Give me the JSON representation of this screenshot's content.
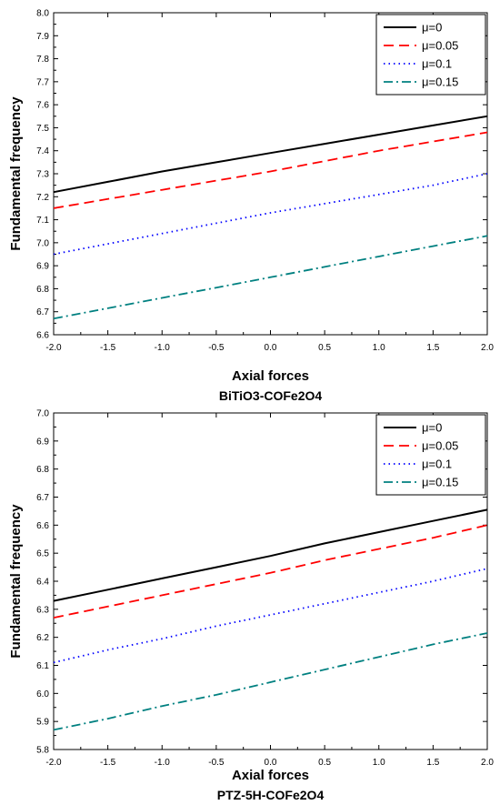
{
  "chart_data": [
    {
      "type": "line",
      "caption": "BiTiO3-COFe2O4",
      "xlabel": "Axial forces",
      "ylabel": "Fundamental frequency",
      "xlim": [
        -2.0,
        2.0
      ],
      "ylim": [
        6.6,
        8.0
      ],
      "x_ticks": [
        "-2.0",
        "-1.5",
        "-1.0",
        "-0.5",
        "0.0",
        "0.5",
        "1.0",
        "1.5",
        "2.0"
      ],
      "y_ticks": [
        "6.6",
        "6.7",
        "6.8",
        "6.9",
        "7.0",
        "7.1",
        "7.2",
        "7.3",
        "7.4",
        "7.5",
        "7.6",
        "7.7",
        "7.8",
        "7.9",
        "8.0"
      ],
      "legend_position": "top-right",
      "series": [
        {
          "name": "μ=0",
          "color": "#000000",
          "dash": "solid",
          "x": [
            -2.0,
            -1.5,
            -1.0,
            -0.5,
            0.0,
            0.5,
            1.0,
            1.5,
            2.0
          ],
          "y": [
            7.22,
            7.265,
            7.31,
            7.35,
            7.39,
            7.43,
            7.47,
            7.51,
            7.55
          ]
        },
        {
          "name": "μ=0.05",
          "color": "#ff0000",
          "dash": "dash",
          "x": [
            -2.0,
            -1.5,
            -1.0,
            -0.5,
            0.0,
            0.5,
            1.0,
            1.5,
            2.0
          ],
          "y": [
            7.15,
            7.19,
            7.23,
            7.27,
            7.31,
            7.355,
            7.4,
            7.44,
            7.48
          ]
        },
        {
          "name": "μ=0.1",
          "color": "#0000ff",
          "dash": "dot",
          "x": [
            -2.0,
            -1.5,
            -1.0,
            -0.5,
            0.0,
            0.5,
            1.0,
            1.5,
            2.0
          ],
          "y": [
            6.95,
            6.995,
            7.04,
            7.085,
            7.13,
            7.17,
            7.21,
            7.25,
            7.3
          ]
        },
        {
          "name": "μ=0.15",
          "color": "#008080",
          "dash": "dashdot",
          "x": [
            -2.0,
            -1.5,
            -1.0,
            -0.5,
            0.0,
            0.5,
            1.0,
            1.5,
            2.0
          ],
          "y": [
            6.67,
            6.715,
            6.76,
            6.805,
            6.85,
            6.895,
            6.94,
            6.985,
            7.03
          ]
        }
      ]
    },
    {
      "type": "line",
      "caption": "PTZ-5H-COFe2O4",
      "xlabel": "Axial forces",
      "ylabel": "Fundamental frequency",
      "xlim": [
        -2.0,
        2.0
      ],
      "ylim": [
        5.8,
        7.0
      ],
      "x_ticks": [
        "-2.0",
        "-1.5",
        "-1.0",
        "-0.5",
        "0.0",
        "0.5",
        "1.0",
        "1.5",
        "2.0"
      ],
      "y_ticks": [
        "5.8",
        "5.9",
        "6.0",
        "6.1",
        "6.2",
        "6.3",
        "6.4",
        "6.5",
        "6.6",
        "6.7",
        "6.8",
        "6.9",
        "7.0"
      ],
      "legend_position": "top-right",
      "series": [
        {
          "name": "μ=0",
          "color": "#000000",
          "dash": "solid",
          "x": [
            -2.0,
            -1.5,
            -1.0,
            -0.5,
            0.0,
            0.5,
            1.0,
            1.5,
            2.0
          ],
          "y": [
            6.33,
            6.37,
            6.41,
            6.45,
            6.49,
            6.535,
            6.575,
            6.615,
            6.655
          ]
        },
        {
          "name": "μ=0.05",
          "color": "#ff0000",
          "dash": "dash",
          "x": [
            -2.0,
            -1.5,
            -1.0,
            -0.5,
            0.0,
            0.5,
            1.0,
            1.5,
            2.0
          ],
          "y": [
            6.27,
            6.31,
            6.35,
            6.39,
            6.43,
            6.475,
            6.515,
            6.555,
            6.6
          ]
        },
        {
          "name": "μ=0.1",
          "color": "#0000ff",
          "dash": "dot",
          "x": [
            -2.0,
            -1.5,
            -1.0,
            -0.5,
            0.0,
            0.5,
            1.0,
            1.5,
            2.0
          ],
          "y": [
            6.11,
            6.155,
            6.195,
            6.24,
            6.28,
            6.32,
            6.36,
            6.4,
            6.445
          ]
        },
        {
          "name": "μ=0.15",
          "color": "#008080",
          "dash": "dashdot",
          "x": [
            -2.0,
            -1.5,
            -1.0,
            -0.5,
            0.0,
            0.5,
            1.0,
            1.5,
            2.0
          ],
          "y": [
            5.87,
            5.91,
            5.955,
            5.995,
            6.04,
            6.085,
            6.13,
            6.175,
            6.215
          ]
        }
      ]
    }
  ]
}
